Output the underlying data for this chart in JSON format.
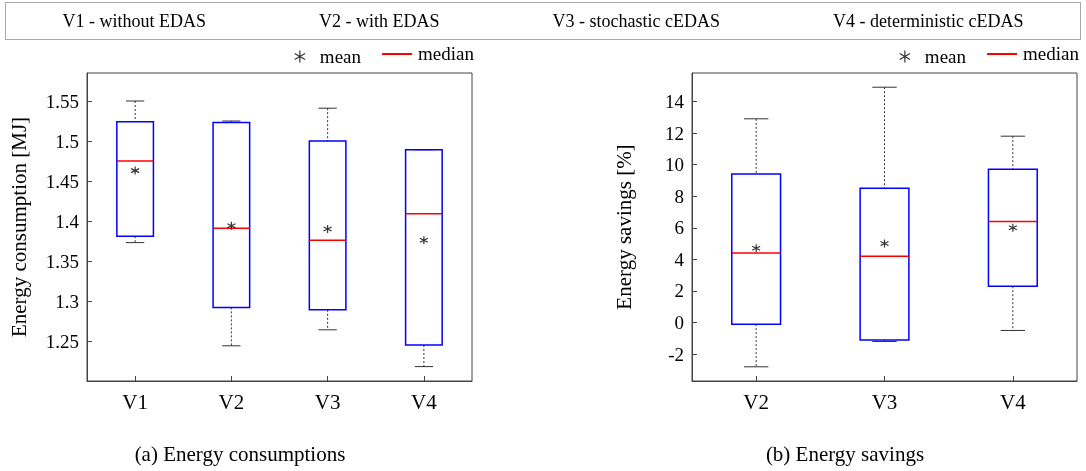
{
  "chart_data": [
    {
      "type": "other",
      "annotations": [
        "V1 - without EDAS",
        "V2 - with EDAS",
        "V3 - stochastic cEDAS",
        "V4 - deterministic cEDAS"
      ]
    },
    {
      "type": "box",
      "title": "(a) Energy consumptions",
      "ylabel": "Energy consumption [MJ]",
      "categories": [
        "V1",
        "V2",
        "V3",
        "V4"
      ],
      "ylim": [
        1.2,
        1.585
      ],
      "yticks": [
        1.25,
        1.3,
        1.35,
        1.4,
        1.45,
        1.5,
        1.55
      ],
      "grid": false,
      "legend": "top right",
      "annotations": [
        "median"
      ],
      "series": [
        {
          "type": "box",
          "color": "#0000ff",
          "boxes": [
            {
              "low": 1.373,
              "q1": 1.381,
              "median": 1.475,
              "q3": 1.524,
              "high": 1.55
            },
            {
              "low": 1.244,
              "q1": 1.292,
              "median": 1.391,
              "q3": 1.523,
              "high": 1.525
            },
            {
              "low": 1.264,
              "q1": 1.289,
              "median": 1.376,
              "q3": 1.5,
              "high": 1.541
            },
            {
              "low": 1.218,
              "q1": 1.245,
              "median": 1.409,
              "q3": 1.489,
              "high": 1.489
            }
          ]
        },
        {
          "type": "scatter",
          "name": "mean",
          "color": "#000000",
          "marker": "cross",
          "x": [
            "V1",
            "V2",
            "V3",
            "V4"
          ],
          "values": [
            1.463,
            1.394,
            1.39,
            1.376
          ]
        }
      ]
    },
    {
      "type": "box",
      "title": "(b) Energy savings",
      "ylabel": "Energy savings [%]",
      "categories": [
        "V2",
        "V3",
        "V4"
      ],
      "ylim": [
        -3.7,
        15.8
      ],
      "yticks": [
        -2,
        0,
        2,
        4,
        6,
        8,
        10,
        12,
        14
      ],
      "grid": false,
      "legend": "top right",
      "annotations": [
        "median"
      ],
      "series": [
        {
          "type": "box",
          "color": "#0000ff",
          "boxes": [
            {
              "low": -2.8,
              "q1": -0.1,
              "median": 4.4,
              "q3": 9.4,
              "high": 12.9
            },
            {
              "low": -1.2,
              "q1": -1.1,
              "median": 4.2,
              "q3": 8.5,
              "high": 14.9
            },
            {
              "low": -0.5,
              "q1": 2.3,
              "median": 6.4,
              "q3": 9.7,
              "high": 11.8
            }
          ]
        },
        {
          "type": "scatter",
          "name": "mean",
          "color": "#000000",
          "marker": "cross",
          "x": [
            "V2",
            "V3",
            "V4"
          ],
          "values": [
            4.7,
            5.0,
            6.0
          ]
        }
      ]
    }
  ]
}
